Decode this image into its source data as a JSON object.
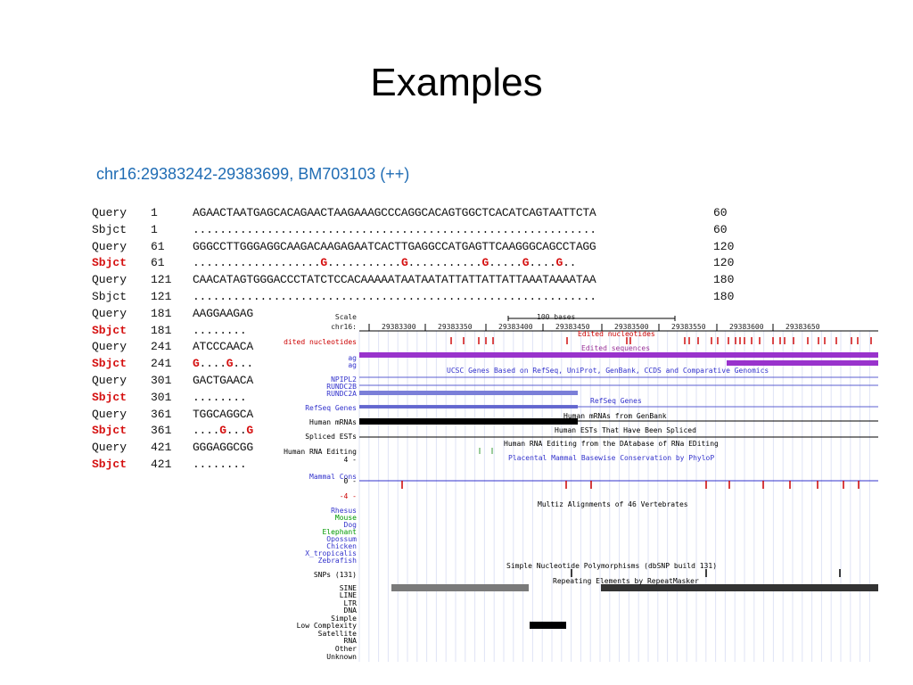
{
  "title": "Examples",
  "subtitle": "chr16:29383242-29383699, BM703103 (++)",
  "alignment": [
    {
      "label": "Query",
      "start": "1",
      "seq": "AGAACTAATGAGCACAGAACTAAGAAAGCCCAGGCACAGTGGCTCACATCAGTAATTCTA",
      "end": "60",
      "red": false
    },
    {
      "label": "Sbjct",
      "start": "1",
      "seq": "............................................................",
      "end": "60",
      "red": false
    },
    {
      "label": "Query",
      "start": "61",
      "seq": "GGGCCTTGGGAGGCAAGACAAGAGAATCACTTGAGGCCATGAGTTCAAGGGCAGCCTAGG",
      "end": "120",
      "red": false
    },
    {
      "label": "Sbjct",
      "start": "61",
      "seq": "...................G...........G...........G.....G....G..",
      "end": "120",
      "red": true
    },
    {
      "label": "Query",
      "start": "121",
      "seq": "CAACATAGTGGGACCCTATCTCCACAAAAATAATAATATTATTATTATTAAATAAAATAA",
      "end": "180",
      "red": false
    },
    {
      "label": "Sbjct",
      "start": "121",
      "seq": "............................................................",
      "end": "180",
      "red": false
    },
    {
      "label": "Query",
      "start": "181",
      "seq": "AAGGAAGAG",
      "end": "",
      "red": false
    },
    {
      "label": "Sbjct",
      "start": "181",
      "seq": "........",
      "end": "",
      "red": true
    },
    {
      "label": "Query",
      "start": "241",
      "seq": "ATCCCAACA",
      "end": "",
      "red": false
    },
    {
      "label": "Sbjct",
      "start": "241",
      "seq": "G....G...",
      "end": "",
      "red": true
    },
    {
      "label": "Query",
      "start": "301",
      "seq": "GACTGAACA",
      "end": "",
      "red": false
    },
    {
      "label": "Sbjct",
      "start": "301",
      "seq": "........",
      "end": "",
      "red": true
    },
    {
      "label": "Query",
      "start": "361",
      "seq": "TGGCAGGCA",
      "end": "",
      "red": false
    },
    {
      "label": "Sbjct",
      "start": "361",
      "seq": "....G...G",
      "end": "",
      "red": true
    },
    {
      "label": "Query",
      "start": "421",
      "seq": "GGGAGGCGG",
      "end": "",
      "red": false
    },
    {
      "label": "Sbjct",
      "start": "421",
      "seq": "........",
      "end": "",
      "red": true
    }
  ],
  "browser": {
    "scale_label": "Scale",
    "scale_text": "100 bases",
    "chrom_label": "chr16:",
    "coords": [
      "29383300",
      "29383350",
      "29383400",
      "29383450",
      "29383500",
      "29383550",
      "29383600",
      "29383650"
    ],
    "track_labels": [
      {
        "text": "dited nucleotides",
        "color": "#cc0000"
      },
      {
        "text": "ag",
        "color": "#3333cc"
      },
      {
        "text": "ag",
        "color": "#3333cc"
      },
      {
        "text": "NPIPL2",
        "color": "#3333cc"
      },
      {
        "text": "RUNDC2B",
        "color": "#3333cc"
      },
      {
        "text": "RUNDC2A",
        "color": "#3333cc"
      },
      {
        "text": "RefSeq Genes",
        "color": "#3333cc"
      },
      {
        "text": "Human mRNAs",
        "color": "#000000"
      },
      {
        "text": "Spliced ESTs",
        "color": "#000000"
      },
      {
        "text": "Human RNA Editing",
        "color": "#000000"
      },
      {
        "text": "4 -",
        "color": "#000000"
      },
      {
        "text": "Mammal Cons",
        "color": "#3333cc"
      },
      {
        "text": "0 -",
        "color": "#000000"
      },
      {
        "text": "-4 -",
        "color": "#cc0000"
      },
      {
        "text": "Rhesus",
        "color": "#3333cc"
      },
      {
        "text": "Mouse",
        "color": "#009900"
      },
      {
        "text": "Dog",
        "color": "#3333cc"
      },
      {
        "text": "Elephant",
        "color": "#009900"
      },
      {
        "text": "Opossum",
        "color": "#3333cc"
      },
      {
        "text": "Chicken",
        "color": "#3333cc"
      },
      {
        "text": "X_tropicalis",
        "color": "#3333cc"
      },
      {
        "text": "Zebrafish",
        "color": "#3333cc"
      },
      {
        "text": "SNPs (131)",
        "color": "#000000"
      },
      {
        "text": "SINE",
        "color": "#000000"
      },
      {
        "text": "LINE",
        "color": "#000000"
      },
      {
        "text": "LTR",
        "color": "#000000"
      },
      {
        "text": "DNA",
        "color": "#000000"
      },
      {
        "text": "Simple",
        "color": "#000000"
      },
      {
        "text": "Low Complexity",
        "color": "#000000"
      },
      {
        "text": "Satellite",
        "color": "#000000"
      },
      {
        "text": "RNA",
        "color": "#000000"
      },
      {
        "text": "Other",
        "color": "#000000"
      },
      {
        "text": "Unknown",
        "color": "#000000"
      }
    ],
    "track_titles": [
      {
        "text": "Edited nucleotides",
        "color": "#cc0000"
      },
      {
        "text": "Edited sequences",
        "color": "#993399"
      },
      {
        "text": "UCSC Genes Based on RefSeq, UniProt, GenBank, CCDS and Comparative Genomics",
        "color": "#3333cc"
      },
      {
        "text": "RefSeq Genes",
        "color": "#3333cc"
      },
      {
        "text": "Human mRNAs from GenBank",
        "color": "#000000"
      },
      {
        "text": "Human ESTs That Have Been Spliced",
        "color": "#000000"
      },
      {
        "text": "Human RNA Editing from the DAtabase of RNa EDiting",
        "color": "#000000"
      },
      {
        "text": "Placental Mammal Basewise Conservation by PhyloP",
        "color": "#3333cc"
      },
      {
        "text": "Multiz Alignments of 46 Vertebrates",
        "color": "#000000"
      },
      {
        "text": "Simple Nucleotide Polymorphisms (dbSNP build 131)",
        "color": "#000000"
      },
      {
        "text": "Repeating Elements by RepeatMasker",
        "color": "#000000"
      }
    ]
  }
}
